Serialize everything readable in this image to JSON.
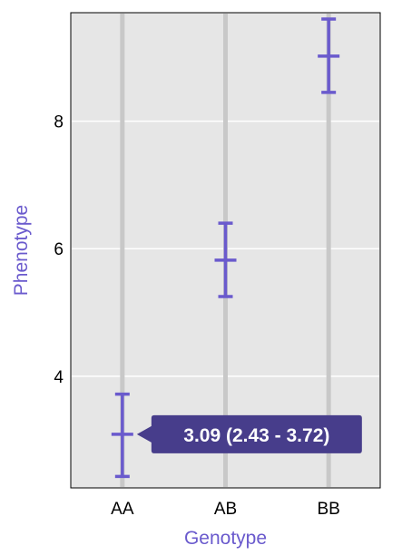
{
  "chart_data": {
    "type": "scatter",
    "categories": [
      "AA",
      "AB",
      "BB"
    ],
    "series": [
      {
        "means": [
          3.09,
          5.82,
          9.02
        ],
        "lower": [
          2.43,
          5.25,
          8.45
        ],
        "upper": [
          3.72,
          6.4,
          9.6
        ]
      }
    ],
    "xlabel": "Genotype",
    "ylabel": "Phenotype",
    "yticks": [
      4,
      6,
      8
    ],
    "ylim": [
      2.25,
      9.7
    ],
    "grid": true,
    "colors": {
      "panel": "#e6e6e6",
      "gridline": "#ffffff",
      "category_line": "#c8c8c8",
      "series": "#6a5acd",
      "tooltip_bg": "#473d8b",
      "axis_title": "#6a5acd"
    },
    "tooltip": {
      "category": "AA",
      "text": "3.09 (2.43 - 3.72)"
    }
  }
}
